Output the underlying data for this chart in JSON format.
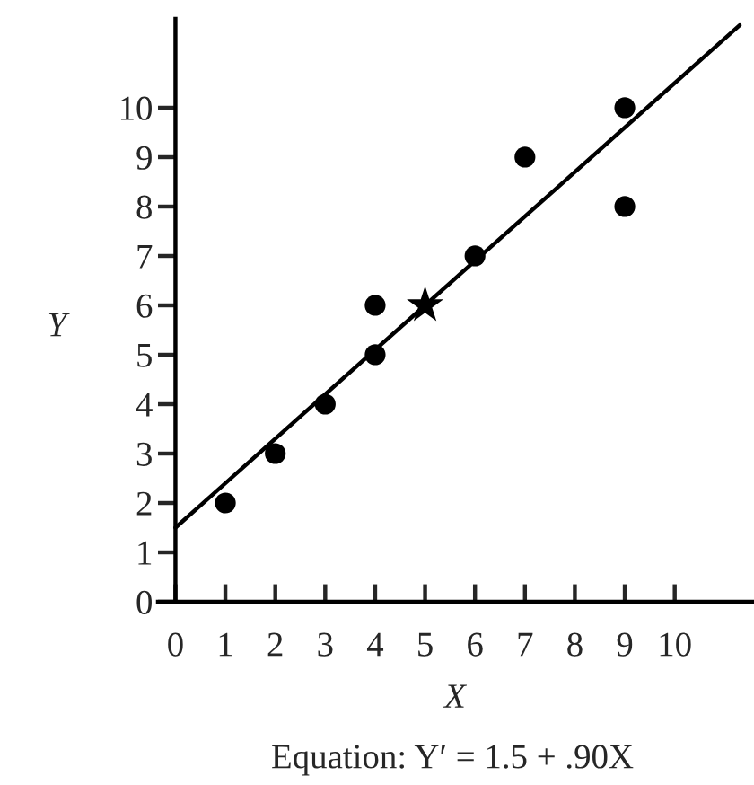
{
  "chart_data": {
    "type": "scatter",
    "xlabel": "X",
    "ylabel": "Y",
    "annotations": [
      "Equation: Y′ = 1.5 + .90X"
    ],
    "series": [
      {
        "marker": "circle",
        "color": "#000000",
        "x": [
          1,
          2,
          3,
          4,
          4,
          6,
          7,
          9,
          9
        ],
        "values": [
          2,
          3,
          4,
          5,
          6,
          7,
          9,
          10,
          8
        ]
      },
      {
        "type": "scatter",
        "marker": "star",
        "color": "#000000",
        "x": [
          5
        ],
        "values": [
          6
        ]
      },
      {
        "type": "line",
        "color": "#000000",
        "x": [
          0,
          11.3
        ],
        "values": [
          1.5,
          11.67
        ]
      }
    ],
    "xlim": [
      -0.35,
      11.55
    ],
    "ylim": [
      0,
      11.8
    ],
    "xticks": [
      0,
      1,
      2,
      3,
      4,
      5,
      6,
      7,
      8,
      9,
      10
    ],
    "yticks": [
      0,
      1,
      2,
      3,
      4,
      5,
      6,
      7,
      8,
      9,
      10
    ],
    "grid": false,
    "legend": false
  }
}
